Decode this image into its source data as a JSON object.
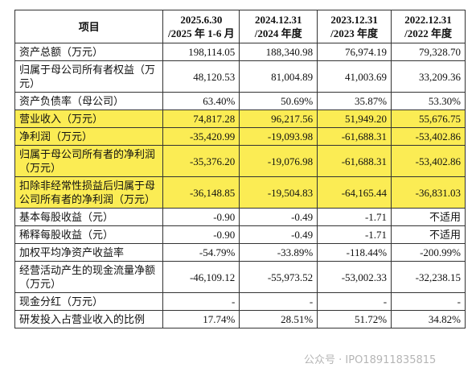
{
  "table": {
    "headers": [
      {
        "line1": "项目"
      },
      {
        "line1": "2025.6.30",
        "line2": "/2025 年 1-6 月"
      },
      {
        "line1": "2024.12.31",
        "line2": "/2024 年度"
      },
      {
        "line1": "2023.12.31",
        "line2": "/2023 年度"
      },
      {
        "line1": "2022.12.31",
        "line2": "/2022 年度"
      }
    ],
    "rows": [
      [
        "资产总额（万元）",
        "198,114.05",
        "188,340.98",
        "76,974.19",
        "79,328.70"
      ],
      [
        "归属于母公司所有者权益（万元）",
        "48,120.53",
        "81,004.89",
        "41,003.69",
        "33,209.36"
      ],
      [
        "资产负债率（母公司）",
        "63.40%",
        "50.69%",
        "35.87%",
        "53.30%"
      ],
      [
        "营业收入（万元）",
        "74,817.28",
        "96,217.56",
        "51,949.20",
        "55,676.75"
      ],
      [
        "净利润（万元）",
        "-35,420.99",
        "-19,093.98",
        "-61,688.31",
        "-53,402.86"
      ],
      [
        "归属于母公司所有者的净利润（万元）",
        "-35,376.20",
        "-19,076.98",
        "-61,688.31",
        "-53,402.86"
      ],
      [
        "扣除非经常性损益后归属于母公司所有者的净利润（万元）",
        "-36,148.85",
        "-19,504.83",
        "-64,165.44",
        "-36,831.03"
      ],
      [
        "基本每股收益（元）",
        "-0.90",
        "-0.49",
        "-1.71",
        "不适用"
      ],
      [
        "稀释每股收益（元）",
        "-0.90",
        "-0.49",
        "-1.71",
        "不适用"
      ],
      [
        "加权平均净资产收益率",
        "-54.79%",
        "-33.89%",
        "-118.44%",
        "-200.99%"
      ],
      [
        "经营活动产生的现金流量净额（万元）",
        "-46,109.12",
        "-55,973.52",
        "-53,002.33",
        "-32,238.15"
      ],
      [
        "现金分红（万元）",
        "-",
        "-",
        "-",
        "-"
      ],
      [
        "研发投入占营业收入的比例",
        "17.74%",
        "28.51%",
        "51.72%",
        "34.82%"
      ]
    ],
    "highlighted_rows": [
      3,
      4,
      5,
      6
    ]
  },
  "watermark": "公众号 · IPO18911835815"
}
